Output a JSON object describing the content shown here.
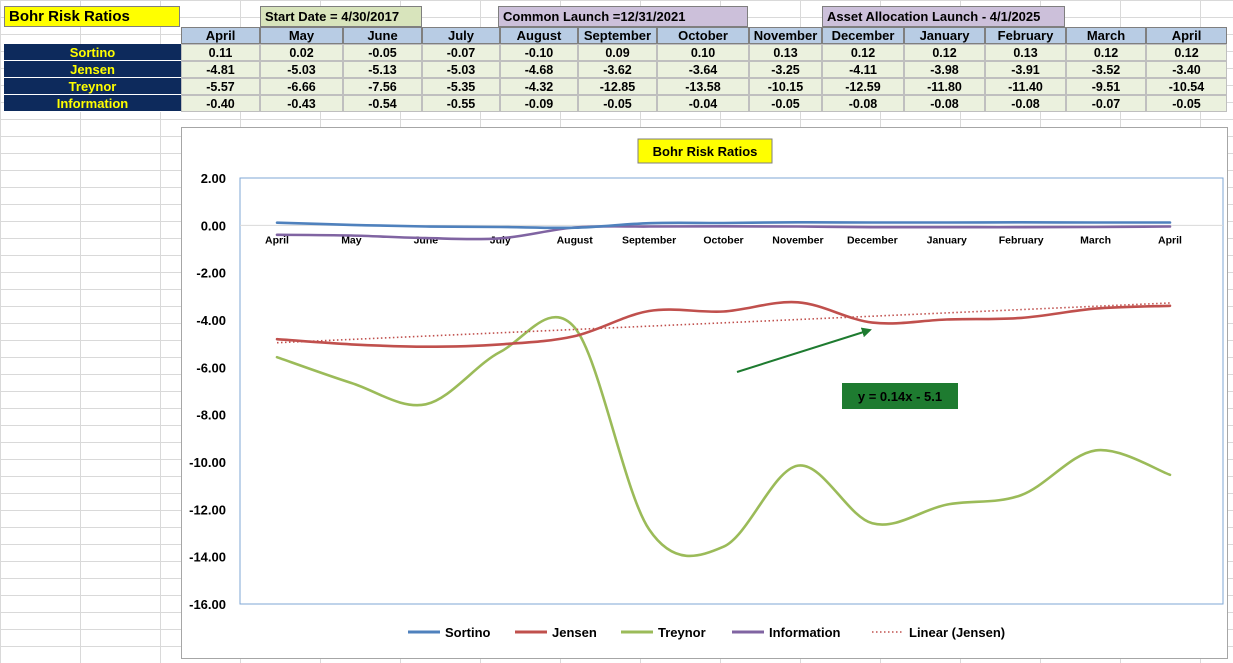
{
  "sheet": {
    "title": "Bohr Risk Ratios",
    "start_date": "Start Date = 4/30/2017",
    "common_launch": "Common Launch =12/31/2021",
    "asset_launch": "Asset Allocation Launch - 4/1/2025",
    "months": [
      "April",
      "May",
      "June",
      "July",
      "August",
      "September",
      "October",
      "November",
      "December",
      "January",
      "February",
      "March",
      "April"
    ],
    "rows": [
      {
        "label": "Sortino",
        "values": [
          "0.11",
          "0.02",
          "-0.05",
          "-0.07",
          "-0.10",
          "0.09",
          "0.10",
          "0.13",
          "0.12",
          "0.12",
          "0.13",
          "0.12",
          "0.12"
        ]
      },
      {
        "label": "Jensen",
        "values": [
          "-4.81",
          "-5.03",
          "-5.13",
          "-5.03",
          "-4.68",
          "-3.62",
          "-3.64",
          "-3.25",
          "-4.11",
          "-3.98",
          "-3.91",
          "-3.52",
          "-3.40"
        ]
      },
      {
        "label": "Treynor",
        "values": [
          "-5.57",
          "-6.66",
          "-7.56",
          "-5.35",
          "-4.32",
          "-12.85",
          "-13.58",
          "-10.15",
          "-12.59",
          "-11.80",
          "-11.40",
          "-9.51",
          "-10.54"
        ]
      },
      {
        "label": "Information",
        "values": [
          "-0.40",
          "-0.43",
          "-0.54",
          "-0.55",
          "-0.09",
          "-0.05",
          "-0.04",
          "-0.05",
          "-0.08",
          "-0.08",
          "-0.08",
          "-0.07",
          "-0.05"
        ]
      }
    ]
  },
  "chart_data": {
    "type": "line",
    "title": "Bohr Risk Ratios",
    "categories": [
      "April",
      "May",
      "June",
      "July",
      "August",
      "September",
      "October",
      "November",
      "December",
      "January",
      "February",
      "March",
      "April"
    ],
    "ylim": [
      -16,
      2
    ],
    "yticks": [
      "2.00",
      "0.00",
      "-2.00",
      "-4.00",
      "-6.00",
      "-8.00",
      "-10.00",
      "-12.00",
      "-14.00",
      "-16.00"
    ],
    "ytick_values": [
      2,
      0,
      -2,
      -4,
      -6,
      -8,
      -10,
      -12,
      -14,
      -16
    ],
    "grid": false,
    "legend": "bottom",
    "series": [
      {
        "name": "Sortino",
        "color": "#4f81bd",
        "values": [
          0.11,
          0.02,
          -0.05,
          -0.07,
          -0.1,
          0.09,
          0.1,
          0.13,
          0.12,
          0.12,
          0.13,
          0.12,
          0.12
        ]
      },
      {
        "name": "Jensen",
        "color": "#c0504d",
        "values": [
          -4.81,
          -5.03,
          -5.13,
          -5.03,
          -4.68,
          -3.62,
          -3.64,
          -3.25,
          -4.11,
          -3.98,
          -3.91,
          -3.52,
          -3.4
        ]
      },
      {
        "name": "Treynor",
        "color": "#9bbb59",
        "values": [
          -5.57,
          -6.66,
          -7.56,
          -5.35,
          -4.32,
          -12.85,
          -13.58,
          -10.15,
          -12.59,
          -11.8,
          -11.4,
          -9.51,
          -10.54
        ]
      },
      {
        "name": "Information",
        "color": "#8064a2",
        "values": [
          -0.4,
          -0.43,
          -0.54,
          -0.55,
          -0.09,
          -0.05,
          -0.04,
          -0.05,
          -0.08,
          -0.08,
          -0.08,
          -0.07,
          -0.05
        ]
      }
    ],
    "trendline": {
      "name": "Linear (Jensen)",
      "color": "#c0504d",
      "equation": "y = 0.14x - 5.1",
      "slope": 0.14,
      "intercept": -5.1
    },
    "annotation_color": "#1e7b30"
  }
}
